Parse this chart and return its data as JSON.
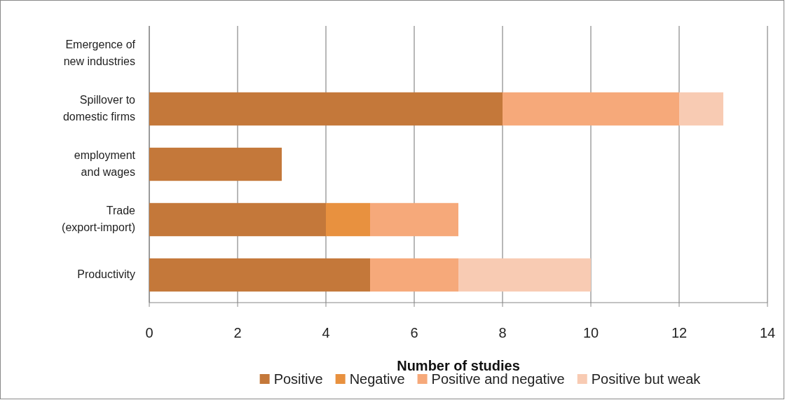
{
  "chart_data": {
    "type": "bar",
    "orientation": "horizontal",
    "stacked": true,
    "categories": [
      "Emergence of new industries",
      "Spillover to domestic firms",
      "employment and wages",
      "Trade (export-import)",
      "Productivity"
    ],
    "series": [
      {
        "name": "Positive",
        "color": "#c4783a",
        "values": [
          0,
          8,
          3,
          4,
          5
        ]
      },
      {
        "name": "Negative",
        "color": "#e8913f",
        "values": [
          0,
          0,
          0,
          1,
          0
        ]
      },
      {
        "name": "Positive and negative",
        "color": "#f6a97a",
        "values": [
          0,
          4,
          0,
          2,
          2
        ]
      },
      {
        "name": "Positive but weak",
        "color": "#f8cbb3",
        "values": [
          0,
          1,
          0,
          0,
          3
        ]
      }
    ],
    "xlim": [
      0,
      14
    ],
    "xticks": [
      0,
      2,
      4,
      6,
      8,
      10,
      12,
      14
    ],
    "xlabel": "Number of studies",
    "grid": "x",
    "legend": "bottom"
  }
}
